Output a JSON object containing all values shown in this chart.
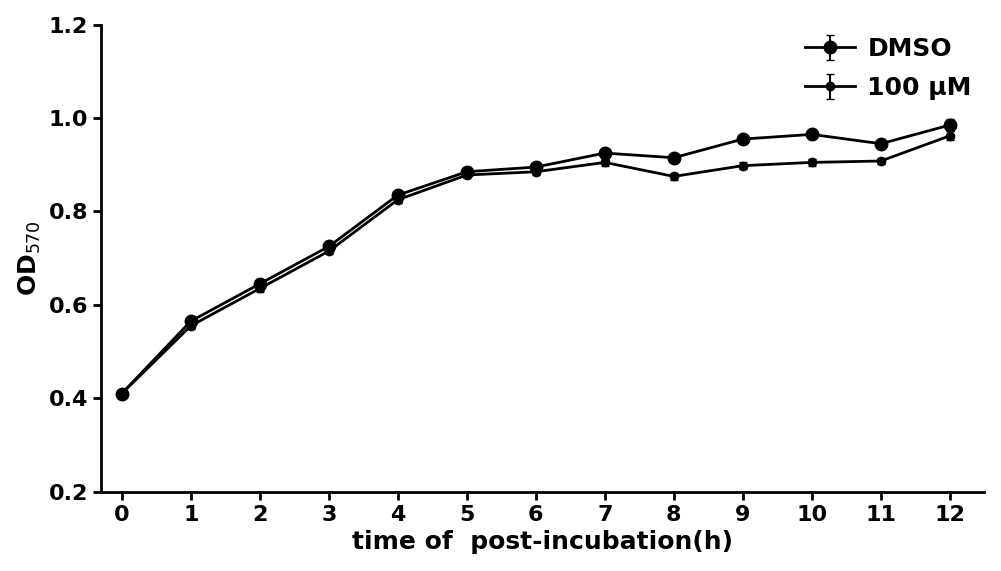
{
  "x": [
    0,
    1,
    2,
    3,
    4,
    5,
    6,
    7,
    8,
    9,
    10,
    11,
    12
  ],
  "dmso_y": [
    0.41,
    0.565,
    0.645,
    0.725,
    0.835,
    0.885,
    0.895,
    0.925,
    0.915,
    0.955,
    0.965,
    0.945,
    0.985
  ],
  "dmso_err": [
    0.005,
    0.008,
    0.007,
    0.007,
    0.008,
    0.007,
    0.007,
    0.007,
    0.007,
    0.007,
    0.007,
    0.007,
    0.012
  ],
  "um100_y": [
    0.41,
    0.555,
    0.635,
    0.715,
    0.825,
    0.878,
    0.885,
    0.905,
    0.875,
    0.898,
    0.905,
    0.908,
    0.962
  ],
  "um100_err": [
    0.005,
    0.007,
    0.007,
    0.007,
    0.007,
    0.007,
    0.007,
    0.007,
    0.007,
    0.007,
    0.007,
    0.007,
    0.01
  ],
  "line_color": "#000000",
  "marker_dmso": "o",
  "marker_100um": "o",
  "marker_size_dmso": 9,
  "marker_size_100um": 6,
  "linewidth": 2.0,
  "xlabel": "time of  post-incubation(h)",
  "ylabel": "OD$_{570}$",
  "xlabel_fontsize": 18,
  "ylabel_fontsize": 18,
  "tick_fontsize": 16,
  "legend_labels": [
    "DMSO",
    "100 μM"
  ],
  "legend_fontsize": 18,
  "ylim": [
    0.2,
    1.2
  ],
  "xlim": [
    -0.3,
    12.5
  ],
  "yticks": [
    0.2,
    0.4,
    0.6,
    0.8,
    1.0,
    1.2
  ],
  "xticks": [
    0,
    1,
    2,
    3,
    4,
    5,
    6,
    7,
    8,
    9,
    10,
    11,
    12
  ],
  "background_color": "#ffffff",
  "capsize": 3
}
